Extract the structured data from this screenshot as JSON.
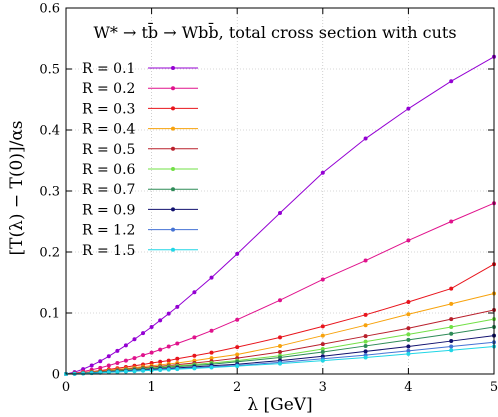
{
  "chart_data": {
    "type": "line",
    "title": "W* → tb̄ → Wbb̄, total cross section with cuts",
    "xlabel": "λ [GeV]",
    "ylabel": "[T(λ) − T(0)]/αs",
    "xlim": [
      0,
      5
    ],
    "ylim": [
      0,
      0.6
    ],
    "xticks": [
      "0",
      "1",
      "2",
      "3",
      "4",
      "5"
    ],
    "yticks": [
      "0",
      "0.1",
      "0.2",
      "0.3",
      "0.4",
      "0.5",
      "0.6"
    ],
    "grid": true,
    "legend_position": "top-left",
    "x": [
      0,
      0.1,
      0.2,
      0.3,
      0.4,
      0.5,
      0.6,
      0.7,
      0.8,
      0.9,
      1.0,
      1.1,
      1.2,
      1.3,
      1.5,
      1.7,
      2.0,
      2.5,
      3.0,
      3.5,
      4.0,
      4.5,
      5.0
    ],
    "series": [
      {
        "name": "R = 0.1",
        "color": "#9400d3",
        "values": [
          0,
          0.003,
          0.008,
          0.014,
          0.021,
          0.029,
          0.038,
          0.047,
          0.057,
          0.067,
          0.077,
          0.088,
          0.099,
          0.11,
          0.134,
          0.158,
          0.197,
          0.264,
          0.33,
          0.386,
          0.435,
          0.48,
          0.52
        ]
      },
      {
        "name": "R = 0.2",
        "color": "#e0128c",
        "values": [
          0,
          0.0015,
          0.004,
          0.007,
          0.01,
          0.014,
          0.018,
          0.022,
          0.026,
          0.031,
          0.035,
          0.04,
          0.045,
          0.05,
          0.06,
          0.071,
          0.089,
          0.121,
          0.155,
          0.186,
          0.219,
          0.25,
          0.28
        ]
      },
      {
        "name": "R = 0.3",
        "color": "#e8141c",
        "values": [
          0,
          0.001,
          0.0025,
          0.004,
          0.0055,
          0.0075,
          0.0095,
          0.0115,
          0.0135,
          0.0155,
          0.018,
          0.02,
          0.022,
          0.025,
          0.03,
          0.035,
          0.044,
          0.06,
          0.078,
          0.097,
          0.118,
          0.14,
          0.18
        ]
      },
      {
        "name": "R = 0.4",
        "color": "#f7a20c",
        "values": [
          0,
          0.0008,
          0.002,
          0.0033,
          0.0046,
          0.006,
          0.0075,
          0.009,
          0.0105,
          0.012,
          0.0135,
          0.015,
          0.0165,
          0.018,
          0.022,
          0.026,
          0.032,
          0.046,
          0.063,
          0.08,
          0.098,
          0.115,
          0.132
        ]
      },
      {
        "name": "R = 0.5",
        "color": "#b9202c",
        "values": [
          0,
          0.0007,
          0.0017,
          0.0028,
          0.004,
          0.0052,
          0.0065,
          0.0078,
          0.009,
          0.0103,
          0.0115,
          0.0128,
          0.014,
          0.0153,
          0.018,
          0.021,
          0.026,
          0.036,
          0.049,
          0.062,
          0.075,
          0.09,
          0.105
        ]
      },
      {
        "name": "R = 0.6",
        "color": "#72e046",
        "values": [
          0,
          0.0006,
          0.0015,
          0.0025,
          0.0035,
          0.0045,
          0.0056,
          0.0067,
          0.0078,
          0.0089,
          0.01,
          0.0111,
          0.0122,
          0.0133,
          0.0156,
          0.018,
          0.022,
          0.03,
          0.041,
          0.053,
          0.065,
          0.077,
          0.09
        ]
      },
      {
        "name": "R = 0.7",
        "color": "#2e8b57",
        "values": [
          0,
          0.0005,
          0.0013,
          0.0022,
          0.0031,
          0.004,
          0.005,
          0.006,
          0.007,
          0.008,
          0.009,
          0.01,
          0.011,
          0.012,
          0.014,
          0.016,
          0.02,
          0.027,
          0.036,
          0.046,
          0.056,
          0.066,
          0.077
        ]
      },
      {
        "name": "R = 0.9",
        "color": "#10106e",
        "values": [
          0,
          0.0004,
          0.0011,
          0.0018,
          0.0026,
          0.0034,
          0.0042,
          0.005,
          0.0058,
          0.0066,
          0.0075,
          0.0083,
          0.0091,
          0.01,
          0.0117,
          0.0135,
          0.016,
          0.022,
          0.029,
          0.037,
          0.045,
          0.054,
          0.063
        ]
      },
      {
        "name": "R = 1.2",
        "color": "#4472d4",
        "values": [
          0,
          0.0004,
          0.001,
          0.0016,
          0.0023,
          0.003,
          0.0037,
          0.0044,
          0.0051,
          0.0058,
          0.0065,
          0.0072,
          0.0079,
          0.0086,
          0.0101,
          0.0116,
          0.014,
          0.019,
          0.025,
          0.031,
          0.038,
          0.045,
          0.052
        ]
      },
      {
        "name": "R = 1.5",
        "color": "#20d6e6",
        "values": [
          0,
          0.0003,
          0.0009,
          0.0015,
          0.0021,
          0.0027,
          0.0033,
          0.004,
          0.0046,
          0.0053,
          0.006,
          0.0066,
          0.0072,
          0.0079,
          0.0093,
          0.0107,
          0.013,
          0.017,
          0.022,
          0.027,
          0.033,
          0.039,
          0.045
        ]
      }
    ]
  }
}
